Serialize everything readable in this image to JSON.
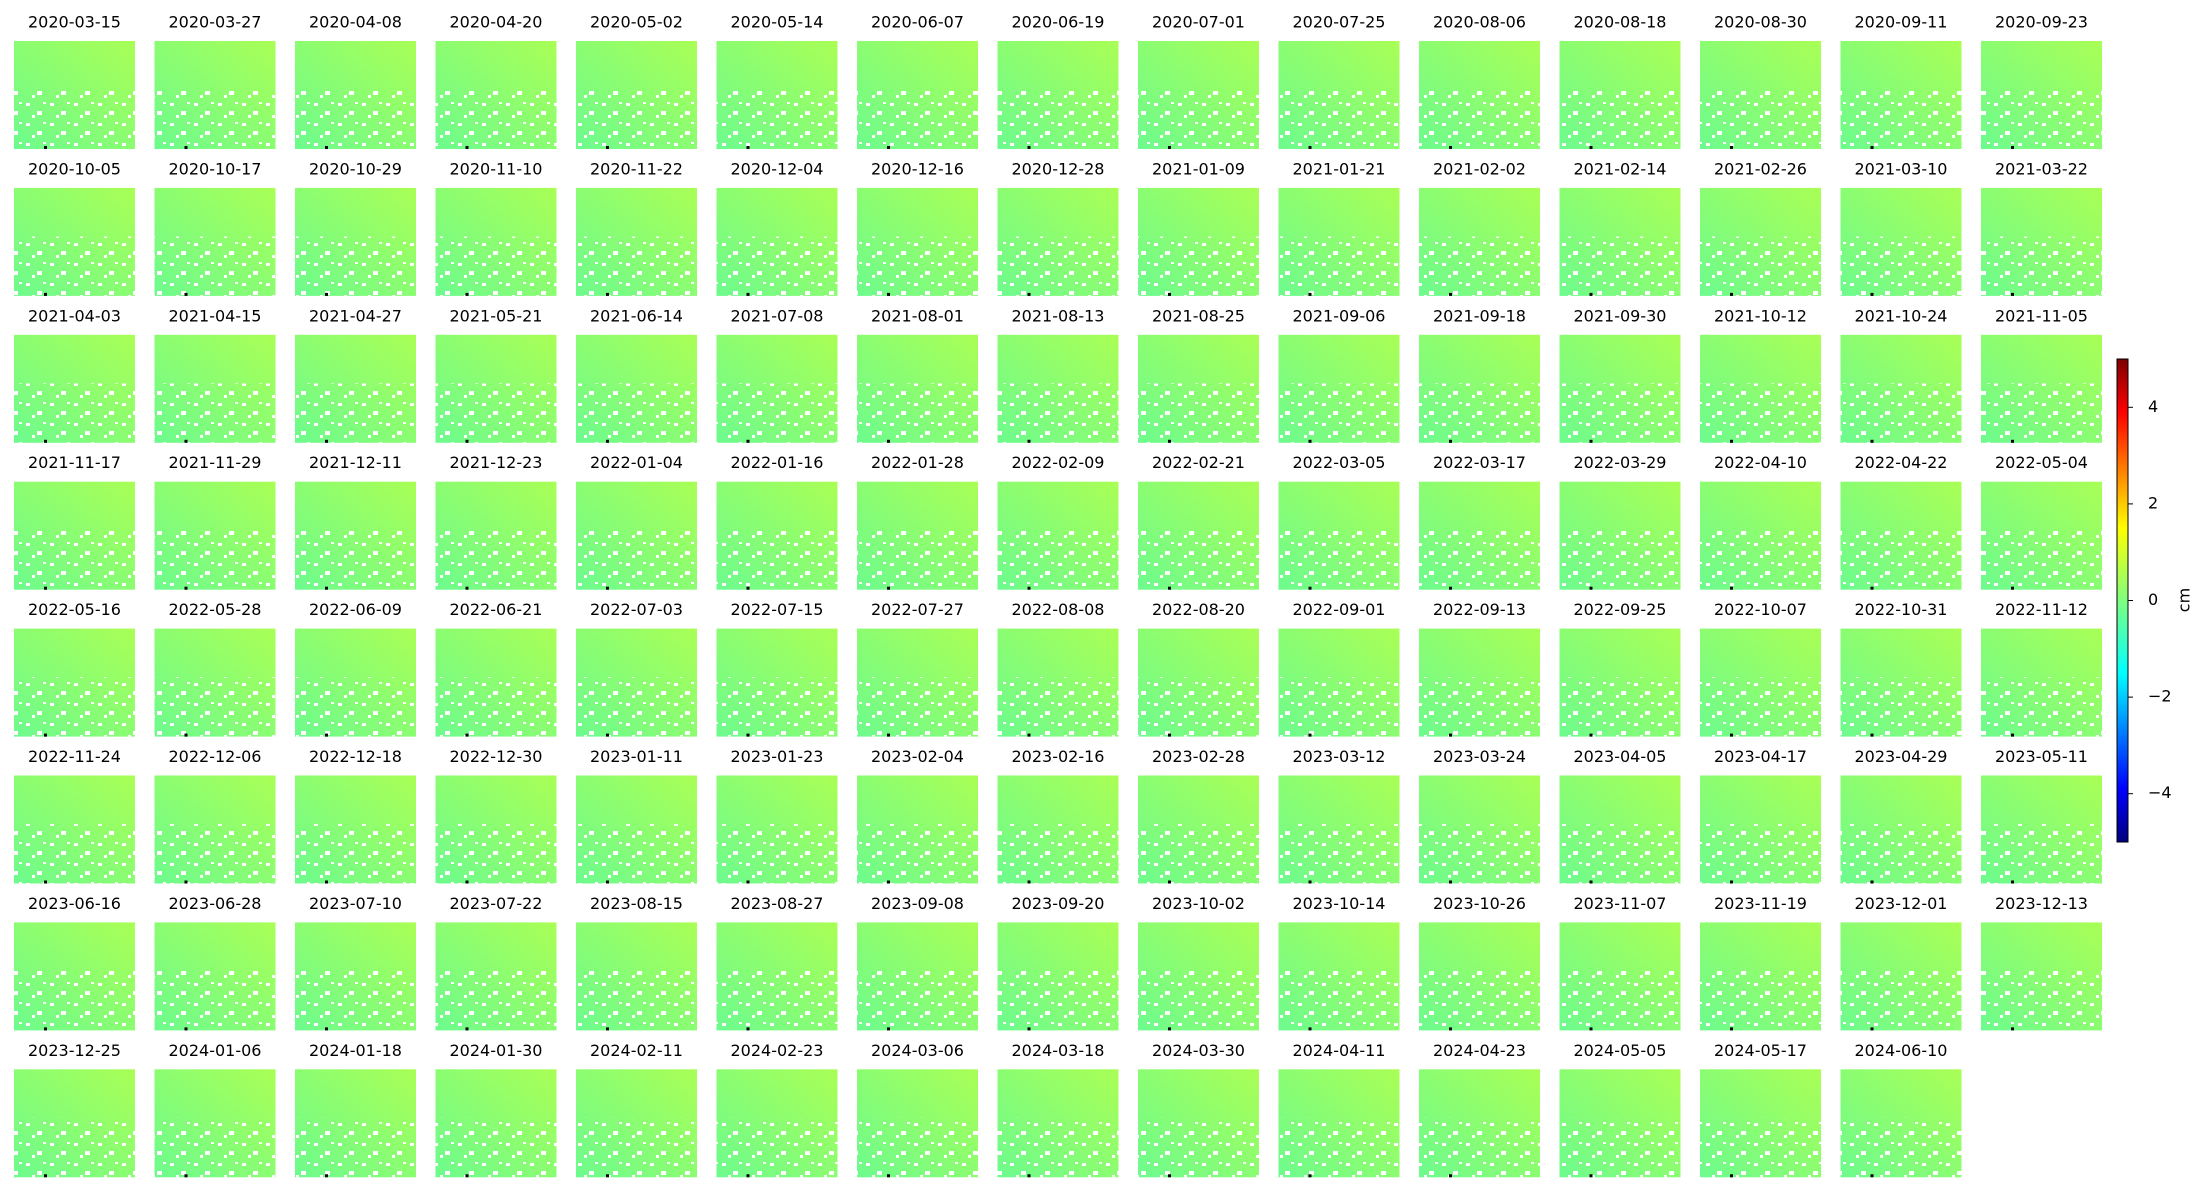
{
  "chart_data": {
    "type": "image-grid",
    "panel_titles": [
      "2020-03-15",
      "2020-03-27",
      "2020-04-08",
      "2020-04-20",
      "2020-05-02",
      "2020-05-14",
      "2020-06-07",
      "2020-06-19",
      "2020-07-01",
      "2020-07-25",
      "2020-08-06",
      "2020-08-18",
      "2020-08-30",
      "2020-09-11",
      "2020-09-23",
      "2020-10-05",
      "2020-10-17",
      "2020-10-29",
      "2020-11-10",
      "2020-11-22",
      "2020-12-04",
      "2020-12-16",
      "2020-12-28",
      "2021-01-09",
      "2021-01-21",
      "2021-02-02",
      "2021-02-14",
      "2021-02-26",
      "2021-03-10",
      "2021-03-22",
      "2021-04-03",
      "2021-04-15",
      "2021-04-27",
      "2021-05-21",
      "2021-06-14",
      "2021-07-08",
      "2021-08-01",
      "2021-08-13",
      "2021-08-25",
      "2021-09-06",
      "2021-09-18",
      "2021-09-30",
      "2021-10-12",
      "2021-10-24",
      "2021-11-05",
      "2021-11-17",
      "2021-11-29",
      "2021-12-11",
      "2021-12-23",
      "2022-01-04",
      "2022-01-16",
      "2022-01-28",
      "2022-02-09",
      "2022-02-21",
      "2022-03-05",
      "2022-03-17",
      "2022-03-29",
      "2022-04-10",
      "2022-04-22",
      "2022-05-04",
      "2022-05-16",
      "2022-05-28",
      "2022-06-09",
      "2022-06-21",
      "2022-07-03",
      "2022-07-15",
      "2022-07-27",
      "2022-08-08",
      "2022-08-20",
      "2022-09-01",
      "2022-09-13",
      "2022-09-25",
      "2022-10-07",
      "2022-10-31",
      "2022-11-12",
      "2022-11-24",
      "2022-12-06",
      "2022-12-18",
      "2022-12-30",
      "2023-01-11",
      "2023-01-23",
      "2023-02-04",
      "2023-02-16",
      "2023-02-28",
      "2023-03-12",
      "2023-03-24",
      "2023-04-05",
      "2023-04-17",
      "2023-04-29",
      "2023-05-11",
      "2023-06-16",
      "2023-06-28",
      "2023-07-10",
      "2023-07-22",
      "2023-08-15",
      "2023-08-27",
      "2023-09-08",
      "2023-09-20",
      "2023-10-02",
      "2023-10-14",
      "2023-10-26",
      "2023-11-07",
      "2023-11-19",
      "2023-12-01",
      "2023-12-13",
      "2023-12-25",
      "2024-01-06",
      "2024-01-18",
      "2024-01-30",
      "2024-02-11",
      "2024-02-23",
      "2024-03-06",
      "2024-03-18",
      "2024-03-30",
      "2024-04-11",
      "2024-04-23",
      "2024-05-05",
      "2024-05-17",
      "2024-06-10"
    ],
    "colorbar": {
      "label": "cm",
      "colormap": "jet",
      "ylim": [
        -5,
        5
      ],
      "yticks": [
        4,
        2,
        0,
        {
          "value": -2,
          "label": "−2"
        },
        {
          "value": -4,
          "label": "−4"
        }
      ]
    }
  }
}
